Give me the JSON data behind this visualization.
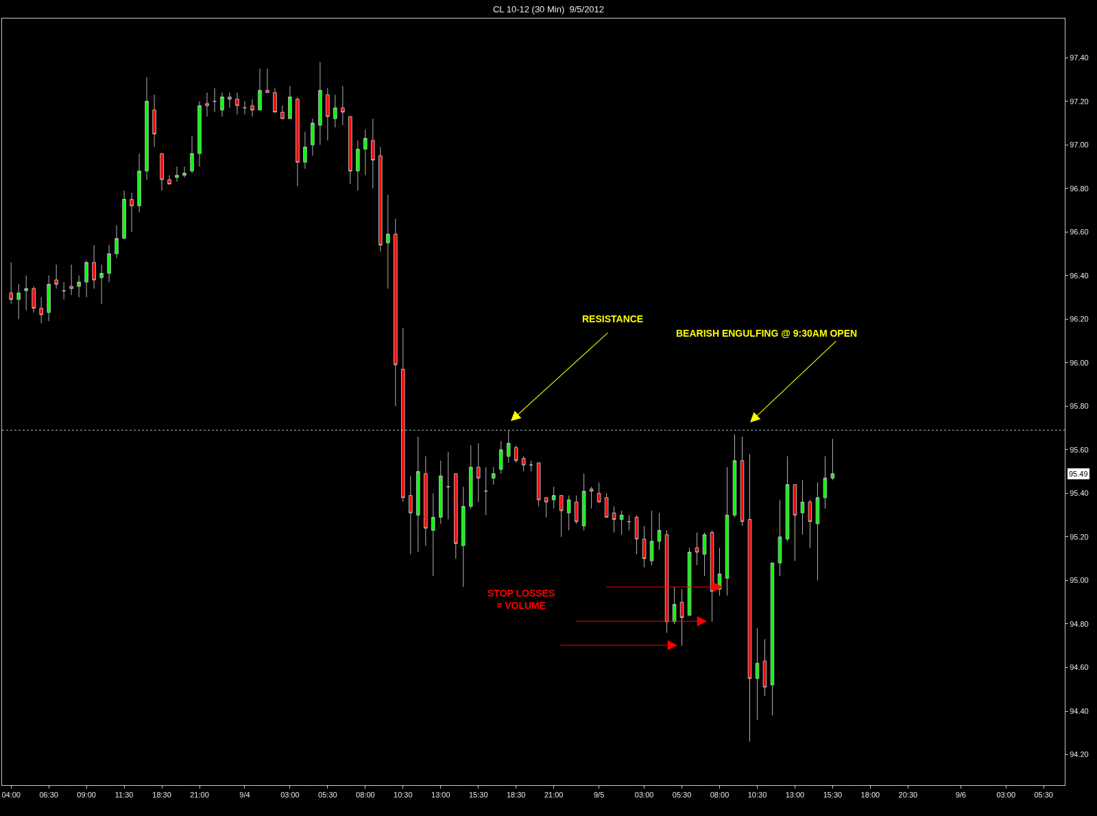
{
  "chart_data": {
    "type": "candlestick",
    "title": "CL 10-12 (30 Min)  9/5/2012",
    "categories": [
      "04:00",
      null,
      null,
      null,
      null,
      "06:30",
      null,
      null,
      null,
      null,
      "09:00",
      null,
      null,
      null,
      null,
      "11:30",
      null,
      null,
      null,
      null,
      "18:30",
      null,
      null,
      null,
      null,
      "21:00",
      null,
      null,
      null,
      null,
      null,
      "9/4",
      null,
      null,
      null,
      null,
      null,
      "03:00",
      null,
      null,
      null,
      null,
      "05:30",
      null,
      null,
      null,
      null,
      "08:00",
      null,
      null,
      null,
      null,
      "10:30",
      null,
      null,
      null,
      null,
      "13:00",
      null,
      null,
      null,
      null,
      "15:30",
      null,
      null,
      null,
      null,
      "18:30",
      null,
      null,
      null,
      null,
      "21:00",
      null,
      null,
      null,
      null,
      null,
      "9/5",
      null,
      null,
      null,
      null,
      null,
      "03:00",
      null,
      null,
      null,
      null,
      "05:30",
      null,
      null,
      null,
      null,
      "08:00",
      null,
      null,
      null,
      null,
      "10:30",
      null,
      null,
      null,
      null,
      "13:00",
      null,
      null,
      null,
      null,
      "15:30",
      null,
      null,
      null,
      null,
      "18:00",
      null,
      null,
      null,
      null,
      "20:30",
      null,
      null,
      null,
      null,
      null,
      null,
      "9/6",
      null,
      null,
      null,
      null,
      null,
      "03:00",
      null,
      null,
      null,
      null,
      "05:30",
      null,
      null
    ],
    "ohlc": [
      [
        96.32,
        96.46,
        96.27,
        96.29
      ],
      [
        96.29,
        96.36,
        96.2,
        96.32
      ],
      [
        96.33,
        96.4,
        96.24,
        96.34
      ],
      [
        96.34,
        96.35,
        96.23,
        96.25
      ],
      [
        96.25,
        96.3,
        96.18,
        96.22
      ],
      [
        96.23,
        96.4,
        96.19,
        96.36
      ],
      [
        96.38,
        96.45,
        96.34,
        96.36
      ],
      [
        96.33,
        96.37,
        96.29,
        96.33
      ],
      [
        96.35,
        96.45,
        96.31,
        96.34
      ],
      [
        96.35,
        96.4,
        96.3,
        96.37
      ],
      [
        96.37,
        96.47,
        96.3,
        96.46
      ],
      [
        96.46,
        96.54,
        96.34,
        96.38
      ],
      [
        96.39,
        96.45,
        96.27,
        96.41
      ],
      [
        96.41,
        96.54,
        96.37,
        96.5
      ],
      [
        96.5,
        96.63,
        96.48,
        96.57
      ],
      [
        96.57,
        96.79,
        96.57,
        96.75
      ],
      [
        96.75,
        96.78,
        96.6,
        96.72
      ],
      [
        96.72,
        96.96,
        96.69,
        96.88
      ],
      [
        96.88,
        97.31,
        96.84,
        97.2
      ],
      [
        97.16,
        97.23,
        96.99,
        97.05
      ],
      [
        96.96,
        96.96,
        96.79,
        96.84
      ],
      [
        96.84,
        96.86,
        96.82,
        96.82
      ],
      [
        96.85,
        96.9,
        96.83,
        96.86
      ],
      [
        96.86,
        96.9,
        96.85,
        96.87
      ],
      [
        96.88,
        97.04,
        96.87,
        96.96
      ],
      [
        96.96,
        97.2,
        96.9,
        97.18
      ],
      [
        97.19,
        97.24,
        97.13,
        97.18
      ],
      [
        97.2,
        97.26,
        97.15,
        97.2
      ],
      [
        97.16,
        97.24,
        97.13,
        97.22
      ],
      [
        97.22,
        97.24,
        97.17,
        97.21
      ],
      [
        97.21,
        97.24,
        97.14,
        97.18
      ],
      [
        97.17,
        97.2,
        97.14,
        97.17
      ],
      [
        97.18,
        97.21,
        97.13,
        97.16
      ],
      [
        97.16,
        97.35,
        97.16,
        97.25
      ],
      [
        97.25,
        97.35,
        97.24,
        97.24
      ],
      [
        97.24,
        97.26,
        97.15,
        97.15
      ],
      [
        97.15,
        97.18,
        97.12,
        97.12
      ],
      [
        97.12,
        97.27,
        97.12,
        97.22
      ],
      [
        97.21,
        97.22,
        96.81,
        96.92
      ],
      [
        96.92,
        97.06,
        96.89,
        96.99
      ],
      [
        97.0,
        97.12,
        96.95,
        97.1
      ],
      [
        97.09,
        97.38,
        97.0,
        97.25
      ],
      [
        97.23,
        97.26,
        97.02,
        97.13
      ],
      [
        97.12,
        97.23,
        97.08,
        97.17
      ],
      [
        97.17,
        97.27,
        97.09,
        97.15
      ],
      [
        97.13,
        97.13,
        96.82,
        96.88
      ],
      [
        96.88,
        97.02,
        96.79,
        96.98
      ],
      [
        96.98,
        97.07,
        96.86,
        97.03
      ],
      [
        97.02,
        97.12,
        96.8,
        96.93
      ],
      [
        96.95,
        96.99,
        96.51,
        96.54
      ],
      [
        96.55,
        96.77,
        96.34,
        96.59
      ],
      [
        96.59,
        96.66,
        95.8,
        95.99
      ],
      [
        95.97,
        96.16,
        95.36,
        95.38
      ],
      [
        95.39,
        95.48,
        95.12,
        95.31
      ],
      [
        95.3,
        95.66,
        95.13,
        95.5
      ],
      [
        95.49,
        95.57,
        95.16,
        95.24
      ],
      [
        95.23,
        95.4,
        95.02,
        95.29
      ],
      [
        95.29,
        95.55,
        95.26,
        95.48
      ],
      [
        95.43,
        95.59,
        95.28,
        95.43
      ],
      [
        95.49,
        95.49,
        95.1,
        95.17
      ],
      [
        95.16,
        95.43,
        94.97,
        95.34
      ],
      [
        95.34,
        95.62,
        95.33,
        95.52
      ],
      [
        95.52,
        95.63,
        95.36,
        95.47
      ],
      [
        95.41,
        95.52,
        95.3,
        95.41
      ],
      [
        95.47,
        95.52,
        95.44,
        95.49
      ],
      [
        95.51,
        95.64,
        95.49,
        95.6
      ],
      [
        95.57,
        95.69,
        95.54,
        95.63
      ],
      [
        95.61,
        95.62,
        95.54,
        95.55
      ],
      [
        95.56,
        95.57,
        95.5,
        95.53
      ],
      [
        95.53,
        95.55,
        95.5,
        95.53
      ],
      [
        95.54,
        95.54,
        95.34,
        95.37
      ],
      [
        95.38,
        95.38,
        95.29,
        95.36
      ],
      [
        95.37,
        95.43,
        95.33,
        95.39
      ],
      [
        95.39,
        95.39,
        95.2,
        95.32
      ],
      [
        95.31,
        95.39,
        95.23,
        95.37
      ],
      [
        95.36,
        95.39,
        95.26,
        95.27
      ],
      [
        95.25,
        95.49,
        95.23,
        95.41
      ],
      [
        95.42,
        95.43,
        95.33,
        95.41
      ],
      [
        95.4,
        95.45,
        95.36,
        95.36
      ],
      [
        95.38,
        95.4,
        95.29,
        95.29
      ],
      [
        95.31,
        95.34,
        95.22,
        95.28
      ],
      [
        95.28,
        95.32,
        95.21,
        95.3
      ],
      [
        95.27,
        95.3,
        95.23,
        95.27
      ],
      [
        95.29,
        95.3,
        95.12,
        95.19
      ],
      [
        95.19,
        95.25,
        95.06,
        95.1
      ],
      [
        95.09,
        95.32,
        95.07,
        95.18
      ],
      [
        95.18,
        95.31,
        95.14,
        95.23
      ],
      [
        95.21,
        95.23,
        94.76,
        94.81
      ],
      [
        94.81,
        94.97,
        94.8,
        94.89
      ],
      [
        94.9,
        94.96,
        94.7,
        94.83
      ],
      [
        94.84,
        95.15,
        94.84,
        95.13
      ],
      [
        95.15,
        95.22,
        95.07,
        95.13
      ],
      [
        95.12,
        95.22,
        95.02,
        95.21
      ],
      [
        95.22,
        95.23,
        94.81,
        94.95
      ],
      [
        94.96,
        95.15,
        94.93,
        95.03
      ],
      [
        95.01,
        95.52,
        94.93,
        95.3
      ],
      [
        95.3,
        95.67,
        95.29,
        95.55
      ],
      [
        95.55,
        95.66,
        95.25,
        95.27
      ],
      [
        95.28,
        95.58,
        94.26,
        94.55
      ],
      [
        94.55,
        94.78,
        94.36,
        94.62
      ],
      [
        94.63,
        94.73,
        94.47,
        94.51
      ],
      [
        94.52,
        95.08,
        94.38,
        95.08
      ],
      [
        95.08,
        95.37,
        95.02,
        95.2
      ],
      [
        95.19,
        95.57,
        95.18,
        95.44
      ],
      [
        95.44,
        95.44,
        95.09,
        95.3
      ],
      [
        95.31,
        95.46,
        95.21,
        95.36
      ],
      [
        95.36,
        95.37,
        95.15,
        95.27
      ],
      [
        95.26,
        95.45,
        95.0,
        95.38
      ],
      [
        95.38,
        95.57,
        95.33,
        95.47
      ],
      [
        95.47,
        95.65,
        95.46,
        95.49
      ],
      null,
      null,
      null,
      null,
      null,
      null,
      null,
      null,
      null,
      null,
      null,
      null,
      null,
      null,
      null,
      null,
      null,
      null,
      null,
      null,
      null,
      null,
      null,
      null,
      null,
      null,
      null,
      null,
      null,
      null
    ],
    "ylim": [
      94.06,
      97.58
    ],
    "yticks": [
      {
        "value": 94.2,
        "label": "94.20"
      },
      {
        "value": 94.4,
        "label": "94.40"
      },
      {
        "value": 94.6,
        "label": "94.60"
      },
      {
        "value": 94.8,
        "label": "94.80"
      },
      {
        "value": 95.0,
        "label": "95.00"
      },
      {
        "value": 95.2,
        "label": "95.20"
      },
      {
        "value": 95.4,
        "label": "95.40"
      },
      {
        "value": 95.6,
        "label": "95.60"
      },
      {
        "value": 95.8,
        "label": "95.80"
      },
      {
        "value": 96.0,
        "label": "96.00"
      },
      {
        "value": 96.2,
        "label": "96.20"
      },
      {
        "value": 96.4,
        "label": "96.40"
      },
      {
        "value": 96.6,
        "label": "96.60"
      },
      {
        "value": 96.8,
        "label": "96.80"
      },
      {
        "value": 97.0,
        "label": "97.00"
      },
      {
        "value": 97.2,
        "label": "97.20"
      },
      {
        "value": 97.4,
        "label": "97.40"
      }
    ],
    "ref_lines": [
      {
        "axis": "y",
        "value": 95.69,
        "color": "#9fbfbf",
        "line_style": "dotted"
      }
    ],
    "annotations": [
      "RESISTANCE",
      "BEARISH ENGULFING @ 9:30AM OPEN",
      "STOP LOSSES\n= VOLUME",
      "95.49"
    ]
  }
}
